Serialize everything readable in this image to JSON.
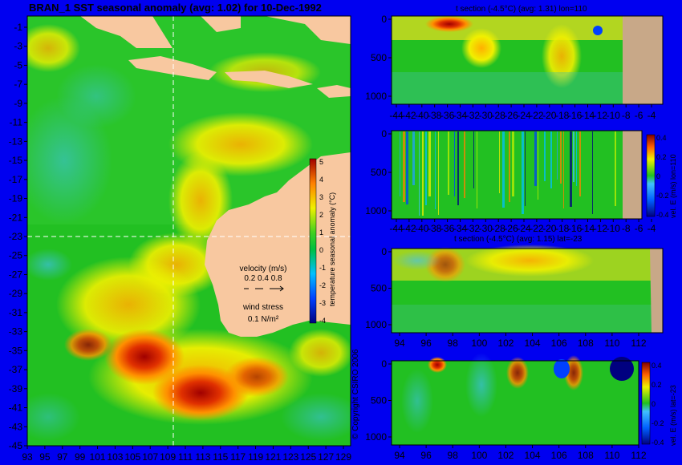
{
  "map": {
    "title": "BRAN_1 SST seasonal anomaly (avg: 1.02) for 10-Dec-1992",
    "lat_ticks": [
      "-1",
      "-3",
      "-5",
      "-7",
      "-9",
      "-11",
      "-13",
      "-15",
      "-17",
      "-19",
      "-21",
      "-23",
      "-25",
      "-27",
      "-29",
      "-31",
      "-33",
      "-35",
      "-37",
      "-39",
      "-41",
      "-43",
      "-45"
    ],
    "lon_ticks": [
      "93",
      "95",
      "97",
      "99",
      "101",
      "103",
      "105",
      "107",
      "109",
      "111",
      "113",
      "115",
      "117",
      "119",
      "121",
      "123",
      "125",
      "127",
      "129"
    ],
    "colorbar_label": "temperature seasonal anomaly (°C)",
    "colorbar_ticks": [
      "5",
      "4",
      "3",
      "2",
      "1",
      "0",
      "-1",
      "-2",
      "-3",
      "-4"
    ],
    "velocity_label": "velocity (m/s)",
    "velocity_scale": "0.2 0.4 0.8",
    "wind_label": "wind stress",
    "wind_scale": "0.1 N/m²",
    "copyright": "© Copyright CSIRO 2006",
    "section_lon": 110,
    "section_lat": -23
  },
  "panels": [
    {
      "title": "t section (-4.5°C) (avg: 1.31) lon=110",
      "y_ticks": [
        "0",
        "500",
        "1000"
      ],
      "x_ticks": [
        "-44",
        "-42",
        "-40",
        "-38",
        "-36",
        "-34",
        "-32",
        "-30",
        "-28",
        "-26",
        "-24",
        "-22",
        "-20",
        "-18",
        "-16",
        "-14",
        "-12",
        "-10",
        "-8",
        "-6",
        "-4"
      ]
    },
    {
      "title": "",
      "y_ticks": [
        "0",
        "500",
        "1000"
      ],
      "x_ticks": [
        "-44",
        "-42",
        "-40",
        "-38",
        "-36",
        "-34",
        "-32",
        "-30",
        "-28",
        "-26",
        "-24",
        "-22",
        "-20",
        "-18",
        "-16",
        "-14",
        "-12",
        "-10",
        "-8",
        "-6",
        "-4"
      ],
      "colorbar_label": "vel. E (m/s) lon=110",
      "colorbar_ticks": [
        "0.4",
        "0.2",
        "0",
        "-0.2",
        "-0.4"
      ]
    },
    {
      "title": "t section (-4.5°C) (avg: 1.15) lat=-23",
      "y_ticks": [
        "0",
        "500",
        "1000"
      ],
      "x_ticks": [
        "94",
        "96",
        "98",
        "100",
        "102",
        "104",
        "106",
        "108",
        "110",
        "112"
      ]
    },
    {
      "title": "",
      "y_ticks": [
        "0",
        "500",
        "1000"
      ],
      "x_ticks": [
        "94",
        "96",
        "98",
        "100",
        "102",
        "104",
        "106",
        "108",
        "110",
        "112"
      ],
      "colorbar_label": "vel. E (m/s) lat=-23",
      "colorbar_ticks": [
        "0.4",
        "0.2",
        "0",
        "-0.2",
        "-0.4"
      ]
    }
  ],
  "colors": {
    "background": "#0000f0",
    "land": "#f8c8a0",
    "seafloor": "#c8a888",
    "ocean_base": "#22c022"
  },
  "chart_data": [
    {
      "type": "heatmap",
      "title": "BRAN_1 SST seasonal anomaly (avg: 1.02) for 10-Dec-1992",
      "x_range": [
        93,
        130
      ],
      "y_range": [
        -45,
        0
      ],
      "colorbar_range": [
        -4,
        5
      ],
      "colorbar_label": "temperature seasonal anomaly (°C)"
    },
    {
      "type": "heatmap",
      "title": "t section (-4.5°C) (avg: 1.31) lon=110",
      "x_range": [
        -45,
        -3
      ],
      "y_range": [
        1050,
        0
      ]
    },
    {
      "type": "heatmap",
      "title": "",
      "x_range": [
        -45,
        -3
      ],
      "y_range": [
        1050,
        0
      ],
      "colorbar_range": [
        -0.4,
        0.4
      ],
      "colorbar_label": "vel. E (m/s) lon=110"
    },
    {
      "type": "heatmap",
      "title": "t section (-4.5°C) (avg: 1.15) lat=-23",
      "x_range": [
        93,
        114
      ],
      "y_range": [
        1050,
        0
      ]
    },
    {
      "type": "heatmap",
      "title": "",
      "x_range": [
        93,
        114
      ],
      "y_range": [
        1050,
        0
      ],
      "colorbar_range": [
        -0.4,
        0.4
      ],
      "colorbar_label": "vel. E (m/s) lat=-23"
    }
  ]
}
